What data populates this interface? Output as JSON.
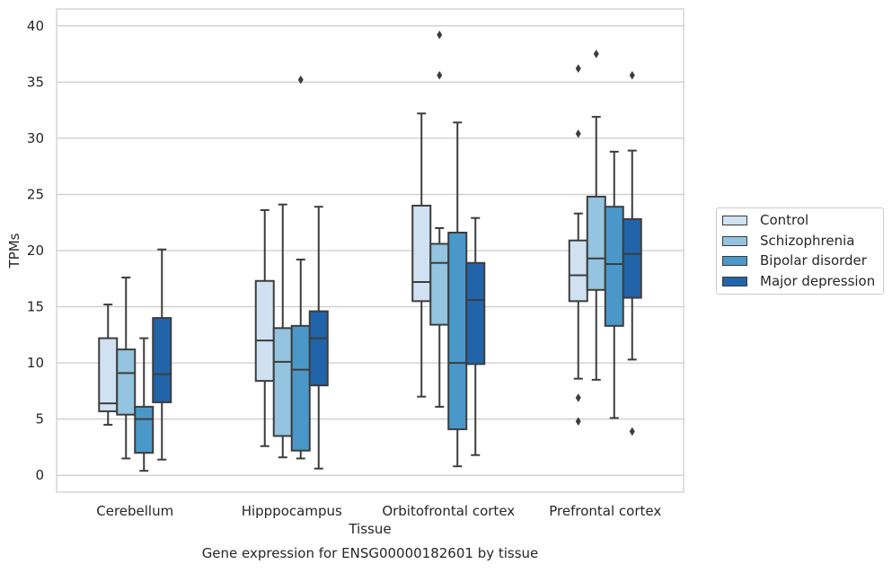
{
  "chart_data": {
    "type": "box",
    "title": "Gene expression for ENSG00000182601 by tissue",
    "xlabel": "Tissue",
    "ylabel": "TPMs",
    "ylim": [
      -1.5,
      41.5
    ],
    "yticks": [
      "0",
      "5",
      "10",
      "15",
      "20",
      "25",
      "30",
      "35",
      "40"
    ],
    "grid": true,
    "legend_position": "right",
    "categories": [
      "Cerebellum",
      "Hipppocampus",
      "Orbitofrontal cortex",
      "Prefrontal cortex"
    ],
    "series": [
      {
        "name": "Control",
        "color": "#d0e1f2",
        "boxes": [
          {
            "whislo": 4.5,
            "q1": 5.7,
            "med": 6.4,
            "q3": 12.2,
            "whishi": 15.2,
            "fliers": []
          },
          {
            "whislo": 2.6,
            "q1": 8.4,
            "med": 12.0,
            "q3": 17.3,
            "whishi": 23.6,
            "fliers": []
          },
          {
            "whislo": 7.0,
            "q1": 15.5,
            "med": 17.2,
            "q3": 24.0,
            "whishi": 32.2,
            "fliers": []
          },
          {
            "whislo": 8.6,
            "q1": 15.5,
            "med": 17.8,
            "q3": 20.9,
            "whishi": 23.3,
            "fliers": [
              4.8,
              6.9,
              30.4,
              36.2
            ]
          }
        ]
      },
      {
        "name": "Schizophrenia",
        "color": "#94c4df",
        "boxes": [
          {
            "whislo": 1.5,
            "q1": 5.4,
            "med": 9.1,
            "q3": 11.2,
            "whishi": 17.6,
            "fliers": []
          },
          {
            "whislo": 1.6,
            "q1": 3.5,
            "med": 10.1,
            "q3": 13.1,
            "whishi": 24.1,
            "fliers": []
          },
          {
            "whislo": 6.1,
            "q1": 13.4,
            "med": 18.9,
            "q3": 20.6,
            "whishi": 22.0,
            "fliers": [
              35.6,
              39.2
            ]
          },
          {
            "whislo": 8.5,
            "q1": 16.5,
            "med": 19.3,
            "q3": 24.8,
            "whishi": 31.9,
            "fliers": [
              37.5
            ]
          }
        ]
      },
      {
        "name": "Bipolar disorder",
        "color": "#4a98c9",
        "boxes": [
          {
            "whislo": 0.4,
            "q1": 2.0,
            "med": 5.0,
            "q3": 6.1,
            "whishi": 12.2,
            "fliers": []
          },
          {
            "whislo": 1.5,
            "q1": 2.2,
            "med": 9.4,
            "q3": 13.3,
            "whishi": 19.2,
            "fliers": [
              35.2
            ]
          },
          {
            "whislo": 0.8,
            "q1": 4.1,
            "med": 10.0,
            "q3": 21.6,
            "whishi": 31.4,
            "fliers": []
          },
          {
            "whislo": 5.1,
            "q1": 13.3,
            "med": 18.8,
            "q3": 23.9,
            "whishi": 28.8,
            "fliers": []
          }
        ]
      },
      {
        "name": "Major depression",
        "color": "#2264a9",
        "boxes": [
          {
            "whislo": 1.4,
            "q1": 6.5,
            "med": 9.0,
            "q3": 14.0,
            "whishi": 20.1,
            "fliers": []
          },
          {
            "whislo": 0.6,
            "q1": 8.0,
            "med": 12.2,
            "q3": 14.6,
            "whishi": 23.9,
            "fliers": []
          },
          {
            "whislo": 1.8,
            "q1": 9.9,
            "med": 15.6,
            "q3": 18.9,
            "whishi": 22.9,
            "fliers": []
          },
          {
            "whislo": 10.3,
            "q1": 15.8,
            "med": 19.7,
            "q3": 22.8,
            "whishi": 28.9,
            "fliers": [
              3.9,
              35.6
            ]
          }
        ]
      }
    ]
  }
}
